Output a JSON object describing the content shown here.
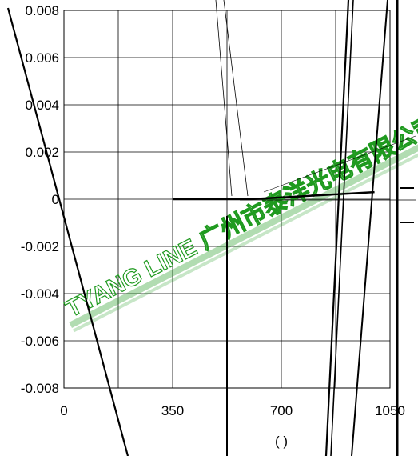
{
  "chart_data": {
    "type": "line",
    "title": "",
    "xlabel": "(  )",
    "ylabel": "",
    "xlim": [
      0,
      1050
    ],
    "ylim": [
      -0.008,
      0.008
    ],
    "x_ticks": [
      0,
      350,
      700,
      1050
    ],
    "y_ticks": [
      -0.008,
      -0.006,
      -0.004,
      -0.002,
      0,
      0.002,
      0.004,
      0.006,
      0.008
    ],
    "x_tick_labels": [
      "0",
      "350",
      "700",
      "1050"
    ],
    "y_tick_labels": [
      "-0.008",
      "-0.006",
      "-0.004",
      "-0.002",
      "0",
      "0.002",
      "0.004",
      "0.006",
      "0.008"
    ],
    "grid": true,
    "series": [
      {
        "values": [
          [
            350,
            0.0
          ],
          [
            600,
            0.0
          ],
          [
            1000,
            0.0003
          ]
        ]
      }
    ],
    "watermark": "TYANG LINE 广州市泰洋光电有限公司",
    "colors": {
      "line": "#000000",
      "watermark": "#1f9a1f",
      "grid": "#000000"
    }
  }
}
